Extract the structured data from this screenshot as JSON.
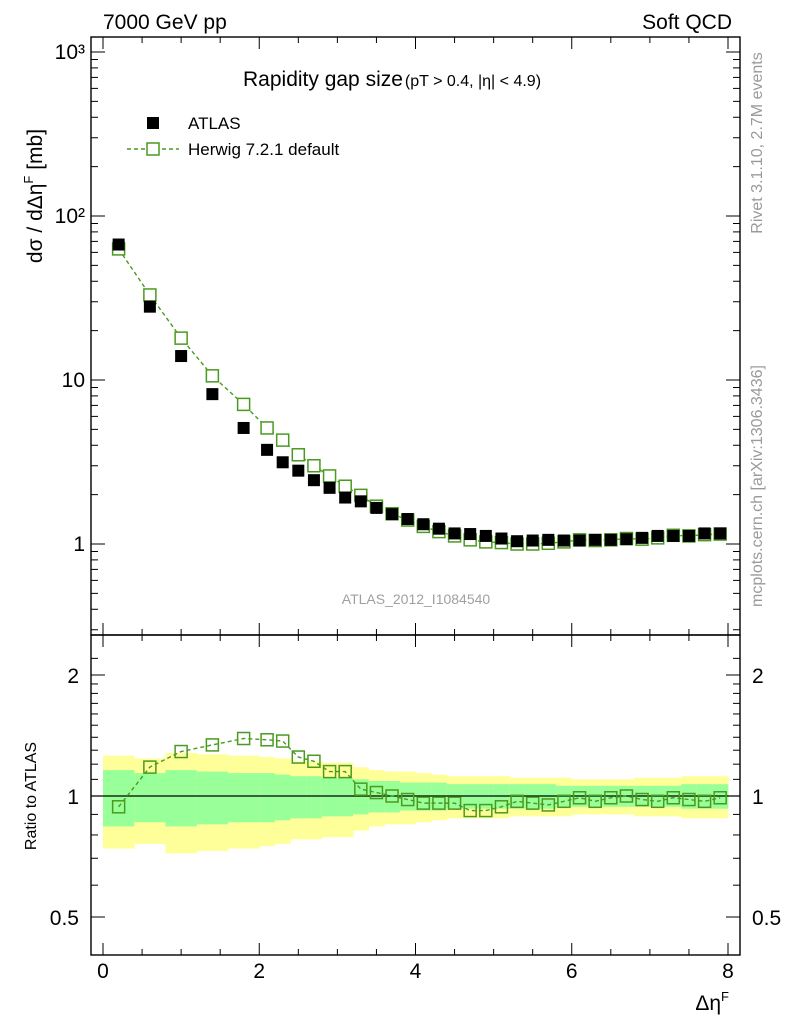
{
  "header": {
    "left": "7000 GeV pp",
    "right": "Soft QCD"
  },
  "side_labels": {
    "rivet": "Rivet 3.1.10,  2.7M events",
    "mcplots": "mcplots.cern.ch [arXiv:1306.3436]"
  },
  "colors": {
    "data": "#000000",
    "mc": "#4a9a1f",
    "band_inner": "#99ff99",
    "band_outer": "#ffff99"
  },
  "chart_data": [
    {
      "type": "scatter",
      "title": "Rapidity gap size",
      "title_sub": "(pT > 0.4, |η| < 4.9)",
      "analysis_id": "ATLAS_2012_I1084540",
      "xlabel": "ΔηF",
      "ylabel": "dσ / dΔηF [mb]",
      "yscale": "log",
      "xlim": [
        -0.2,
        8.2
      ],
      "ylim": [
        0.3,
        1200
      ],
      "x_ticks": [
        "0",
        "2",
        "4",
        "6",
        "8"
      ],
      "y_ticks": [
        "1",
        "10",
        "10²",
        "10³"
      ],
      "legend": [
        {
          "name": "ATLAS",
          "marker": "filled-square"
        },
        {
          "name": "Herwig 7.2.1 default",
          "marker": "open-square-dashed"
        }
      ],
      "x": [
        0.2,
        0.6,
        1.0,
        1.4,
        1.8,
        2.1,
        2.3,
        2.5,
        2.7,
        2.9,
        3.1,
        3.3,
        3.5,
        3.7,
        3.9,
        4.1,
        4.3,
        4.5,
        4.7,
        4.9,
        5.1,
        5.3,
        5.5,
        5.7,
        5.9,
        6.1,
        6.3,
        6.5,
        6.7,
        6.9,
        7.1,
        7.3,
        7.5,
        7.7,
        7.9
      ],
      "series": [
        {
          "name": "ATLAS",
          "values": [
            67.0,
            28.0,
            14.0,
            8.2,
            5.1,
            3.75,
            3.15,
            2.8,
            2.45,
            2.2,
            1.92,
            1.82,
            1.66,
            1.52,
            1.42,
            1.32,
            1.24,
            1.16,
            1.15,
            1.12,
            1.08,
            1.04,
            1.05,
            1.06,
            1.05,
            1.05,
            1.06,
            1.06,
            1.07,
            1.09,
            1.12,
            1.12,
            1.12,
            1.16,
            1.16
          ]
        },
        {
          "name": "Herwig 7.2.1 default",
          "values": [
            63.0,
            33.0,
            18.0,
            10.6,
            7.1,
            5.1,
            4.3,
            3.5,
            3.0,
            2.6,
            2.25,
            1.98,
            1.7,
            1.53,
            1.4,
            1.28,
            1.19,
            1.12,
            1.06,
            1.03,
            1.02,
            1.0,
            1.0,
            1.01,
            1.03,
            1.06,
            1.05,
            1.06,
            1.08,
            1.07,
            1.09,
            1.13,
            1.12,
            1.14,
            1.15
          ]
        }
      ]
    },
    {
      "type": "scatter",
      "ylabel": "Ratio to ATLAS",
      "xlabel": "ΔηF",
      "yscale": "log",
      "xlim": [
        -0.2,
        8.2
      ],
      "ylim": [
        0.4,
        2.4
      ],
      "y_ticks": [
        "0.5",
        "1",
        "2"
      ],
      "x_edges": [
        0.0,
        0.4,
        0.8,
        1.2,
        1.6,
        2.0,
        2.2,
        2.4,
        2.6,
        2.8,
        3.0,
        3.2,
        3.4,
        3.6,
        3.8,
        4.0,
        4.2,
        4.4,
        4.6,
        4.8,
        5.0,
        5.2,
        5.4,
        5.6,
        5.8,
        6.0,
        6.2,
        6.4,
        6.6,
        6.8,
        7.0,
        7.2,
        7.4,
        7.6,
        7.8,
        8.0
      ],
      "band_inner": [
        0.16,
        0.14,
        0.16,
        0.15,
        0.14,
        0.14,
        0.13,
        0.12,
        0.12,
        0.11,
        0.11,
        0.1,
        0.09,
        0.09,
        0.08,
        0.08,
        0.08,
        0.07,
        0.07,
        0.07,
        0.07,
        0.07,
        0.07,
        0.07,
        0.06,
        0.06,
        0.06,
        0.06,
        0.06,
        0.06,
        0.06,
        0.06,
        0.07,
        0.07,
        0.07
      ],
      "band_outer": [
        0.26,
        0.24,
        0.28,
        0.27,
        0.26,
        0.25,
        0.24,
        0.22,
        0.22,
        0.21,
        0.21,
        0.18,
        0.16,
        0.15,
        0.15,
        0.14,
        0.13,
        0.12,
        0.12,
        0.12,
        0.12,
        0.11,
        0.11,
        0.11,
        0.11,
        0.1,
        0.1,
        0.1,
        0.1,
        0.11,
        0.11,
        0.11,
        0.12,
        0.12,
        0.12
      ],
      "series": [
        {
          "name": "Herwig 7.2.1 default",
          "values": [
            0.94,
            1.18,
            1.29,
            1.34,
            1.39,
            1.38,
            1.37,
            1.25,
            1.22,
            1.15,
            1.15,
            1.04,
            1.02,
            1.0,
            0.98,
            0.96,
            0.96,
            0.96,
            0.92,
            0.92,
            0.94,
            0.97,
            0.96,
            0.95,
            0.97,
            0.99,
            0.97,
            0.99,
            1.0,
            0.98,
            0.97,
            0.99,
            0.98,
            0.97,
            0.99
          ]
        }
      ]
    }
  ]
}
